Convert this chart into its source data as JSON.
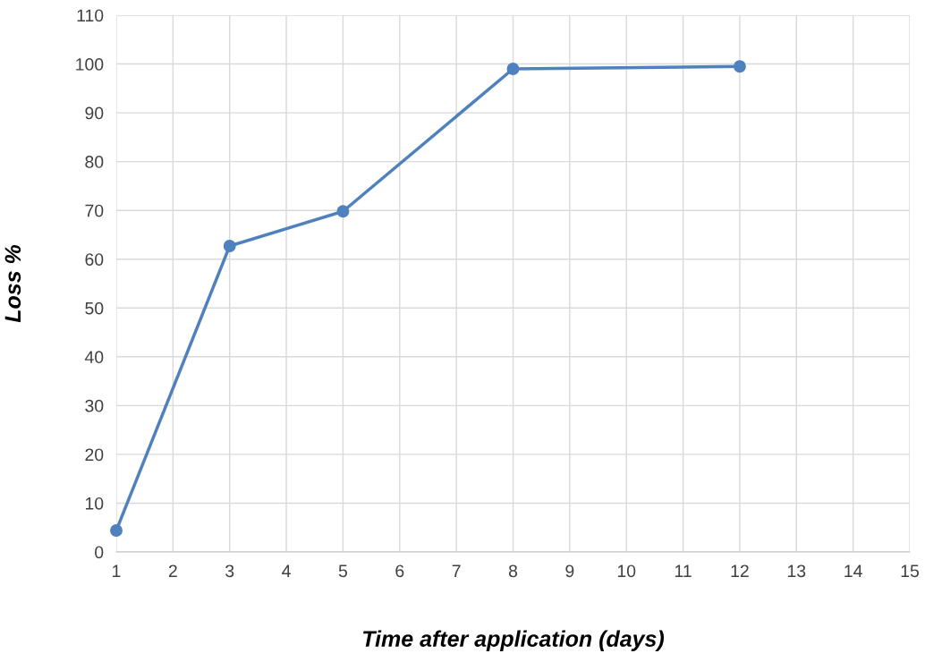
{
  "chart_data": {
    "type": "line",
    "xlabel": "Time after application (days)",
    "ylabel": "Loss %",
    "x": [
      1,
      3,
      5,
      8,
      12
    ],
    "series": [
      {
        "color": "#4f81bd",
        "values": [
          4.4,
          62.7,
          69.8,
          99,
          99.5
        ]
      }
    ],
    "xlim": [
      1,
      15
    ],
    "xticks": [
      1,
      2,
      3,
      4,
      5,
      6,
      7,
      8,
      9,
      10,
      11,
      12,
      13,
      14,
      15
    ],
    "ylim": [
      0,
      110
    ],
    "yticks": [
      0,
      10,
      20,
      30,
      40,
      50,
      60,
      70,
      80,
      90,
      100,
      110
    ],
    "grid": true,
    "marker": "circle",
    "line_style": "solid"
  }
}
